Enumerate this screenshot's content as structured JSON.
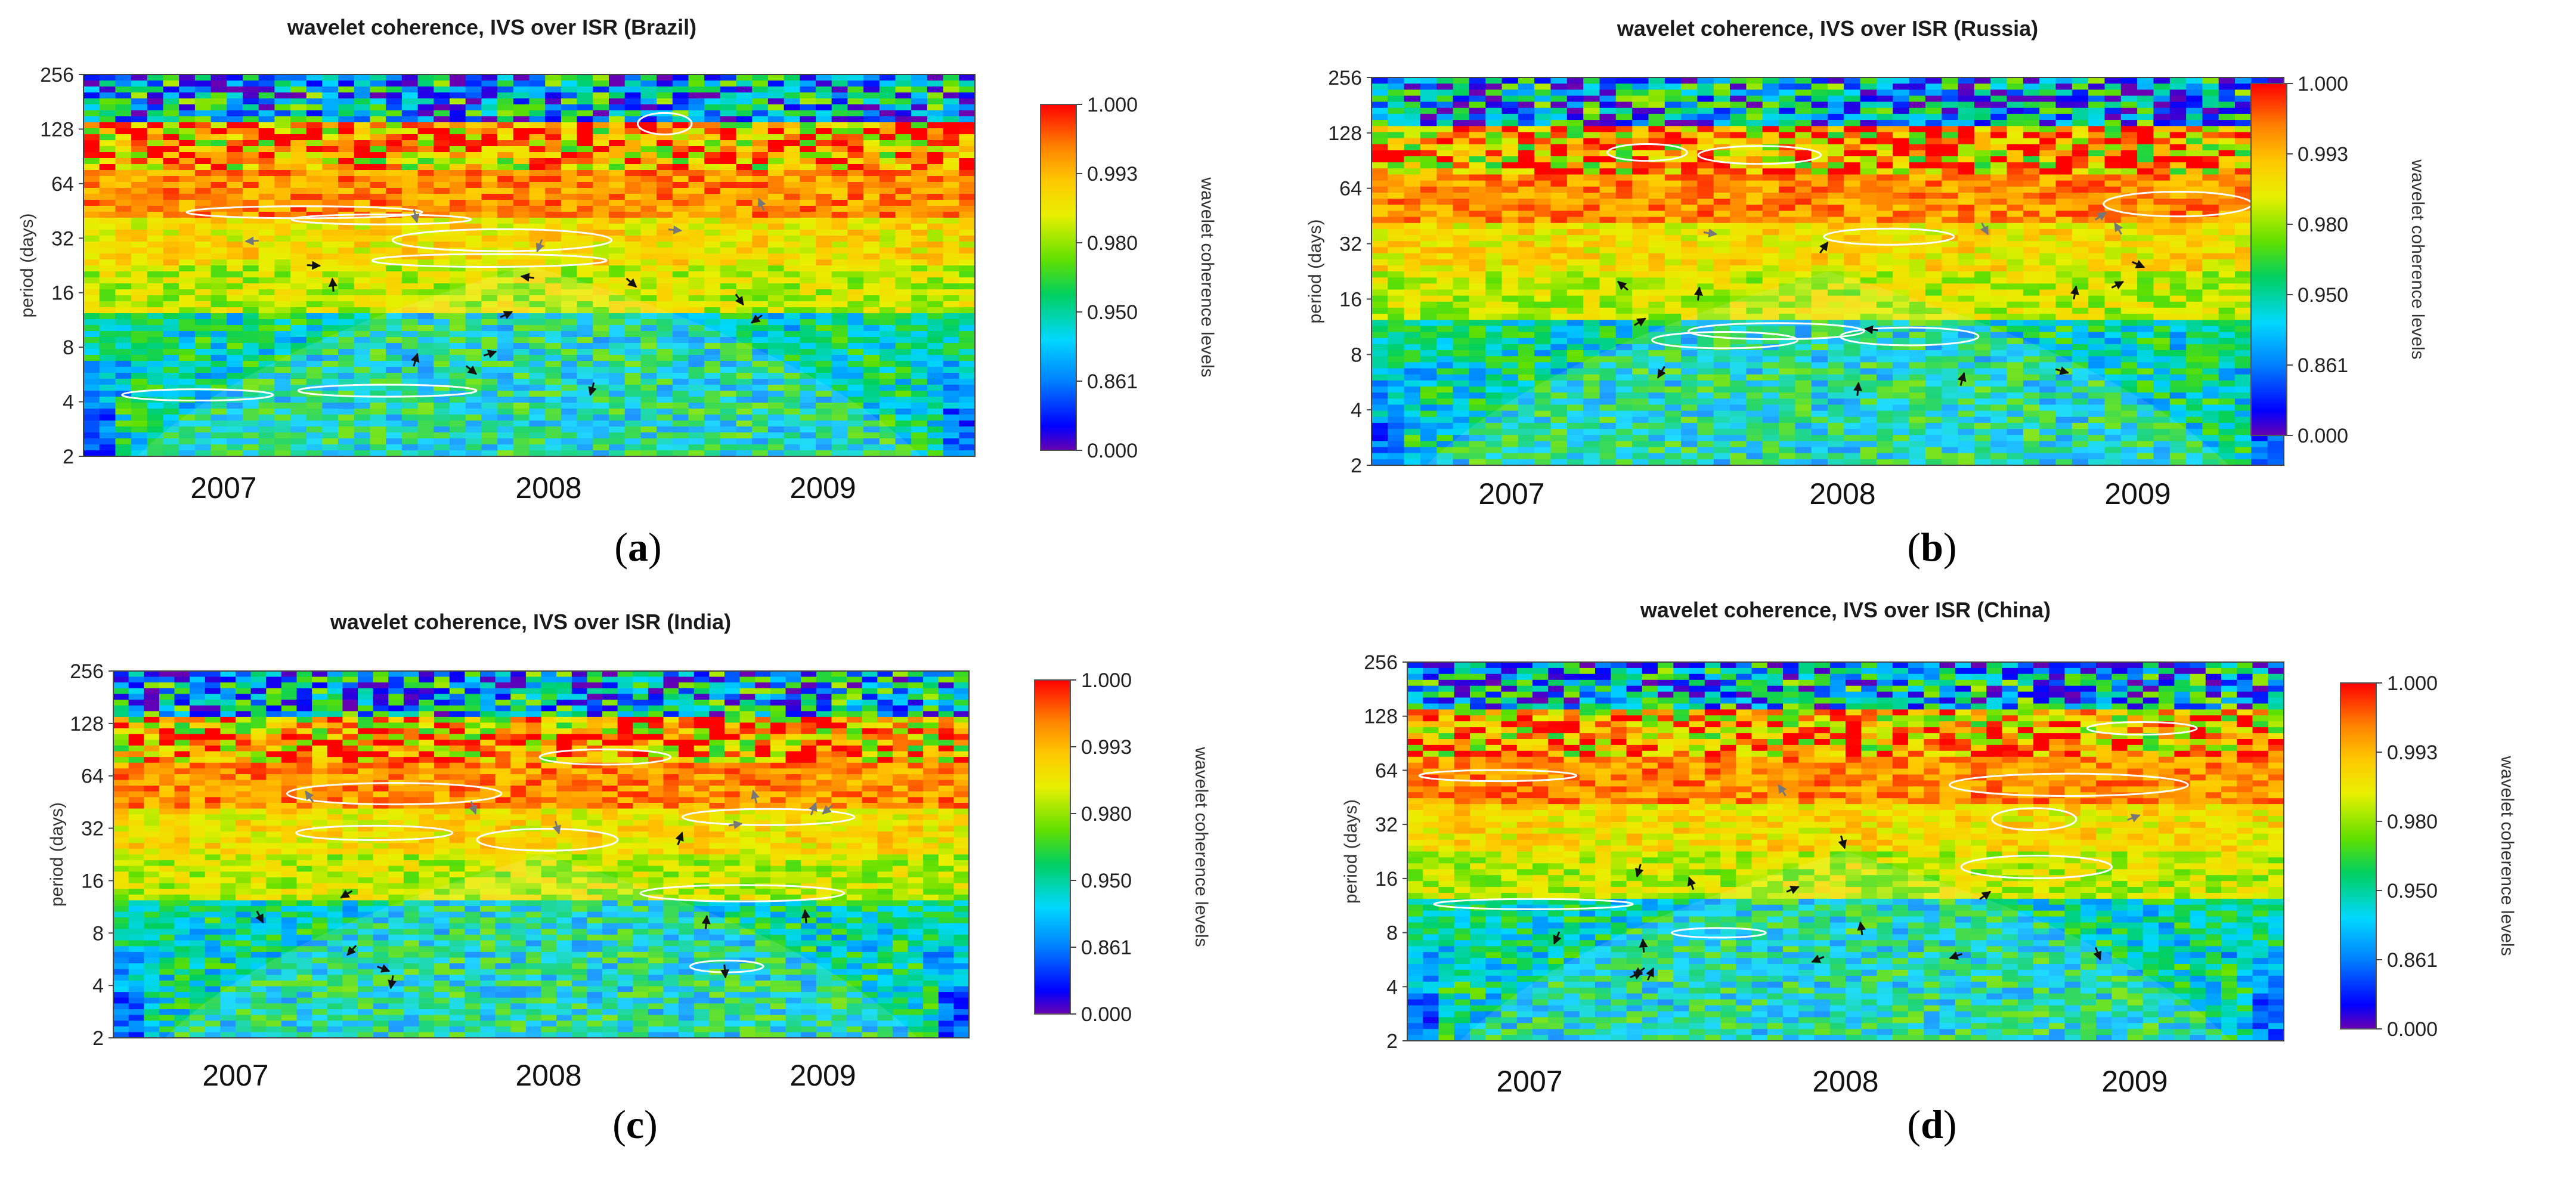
{
  "chart_data": [
    {
      "type": "heatmap",
      "id": "a",
      "title": "wavelet coherence, IVS over ISR (Brazil)",
      "panel_label": "a",
      "xlabel": "",
      "ylabel": "period (days)",
      "x_ticks": [
        "2007",
        "2008",
        "2009"
      ],
      "y_ticks": [
        "2",
        "4",
        "8",
        "16",
        "32",
        "64",
        "128",
        "256"
      ],
      "colorbar_ticks": [
        "1.000",
        "0.993",
        "0.980",
        "0.950",
        "0.861",
        "0.000"
      ],
      "colorbar_label": "wavelet coherence levels",
      "cone_of_influence": true,
      "seed": 11
    },
    {
      "type": "heatmap",
      "id": "b",
      "title": "wavelet coherence, IVS over ISR (Russia)",
      "panel_label": "b",
      "xlabel": "",
      "ylabel": "period (days)",
      "x_ticks": [
        "2007",
        "2008",
        "2009"
      ],
      "y_ticks": [
        "2",
        "4",
        "8",
        "16",
        "32",
        "64",
        "128",
        "256"
      ],
      "colorbar_ticks": [
        "1.000",
        "0.993",
        "0.980",
        "0.950",
        "0.861",
        "0.000"
      ],
      "colorbar_label": "wavelet coherence levels",
      "cone_of_influence": true,
      "seed": 23
    },
    {
      "type": "heatmap",
      "id": "c",
      "title": "wavelet coherence, IVS over ISR (India)",
      "panel_label": "c",
      "xlabel": "",
      "ylabel": "period (days)",
      "x_ticks": [
        "2007",
        "2008",
        "2009"
      ],
      "y_ticks": [
        "2",
        "4",
        "8",
        "16",
        "32",
        "64",
        "128",
        "256"
      ],
      "colorbar_ticks": [
        "1.000",
        "0.993",
        "0.980",
        "0.950",
        "0.861",
        "0.000"
      ],
      "colorbar_label": "wavelet coherence levels",
      "cone_of_influence": true,
      "seed": 37
    },
    {
      "type": "heatmap",
      "id": "d",
      "title": "wavelet coherence, IVS over ISR (China)",
      "panel_label": "d",
      "xlabel": "",
      "ylabel": "period (days)",
      "x_ticks": [
        "2007",
        "2008",
        "2009"
      ],
      "y_ticks": [
        "2",
        "4",
        "8",
        "16",
        "32",
        "64",
        "128",
        "256"
      ],
      "colorbar_ticks": [
        "1.000",
        "0.993",
        "0.980",
        "0.950",
        "0.861",
        "0.000"
      ],
      "colorbar_label": "wavelet coherence levels",
      "cone_of_influence": true,
      "seed": 53
    }
  ],
  "colorscale": [
    "#6a00b0",
    "#0000ff",
    "#0080ff",
    "#00d8ff",
    "#00d060",
    "#60e000",
    "#e8f000",
    "#ffc800",
    "#ff8000",
    "#ff0000"
  ]
}
